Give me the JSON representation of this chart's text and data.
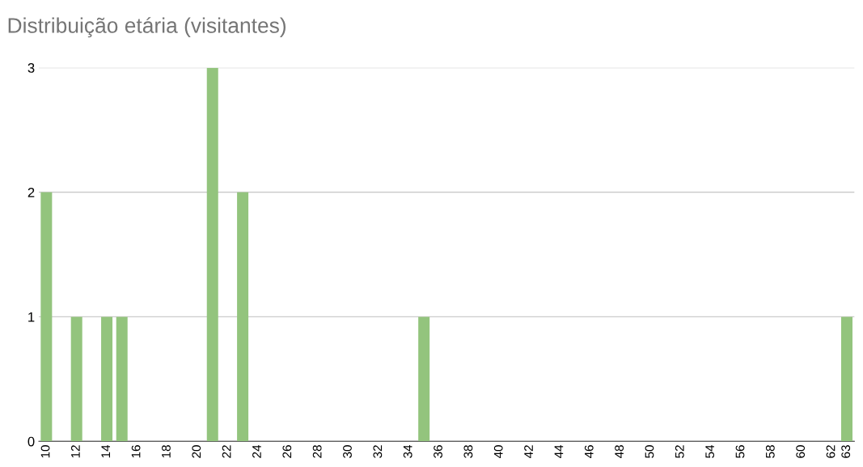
{
  "chart_data": {
    "type": "bar",
    "title": "Distribuição etária (visitantes)",
    "categories": [
      "10",
      null,
      "12",
      null,
      "14",
      null,
      "16",
      null,
      "18",
      null,
      "20",
      null,
      "22",
      null,
      "24",
      null,
      "26",
      null,
      "28",
      null,
      "30",
      null,
      "32",
      null,
      "34",
      null,
      "36",
      null,
      "38",
      null,
      "40",
      null,
      "42",
      null,
      "44",
      null,
      "46",
      null,
      "48",
      null,
      "50",
      null,
      "52",
      null,
      "54",
      null,
      "56",
      null,
      "58",
      null,
      "60",
      null,
      "62",
      "63"
    ],
    "values": [
      2,
      0,
      1,
      0,
      1,
      1,
      0,
      0,
      0,
      0,
      0,
      3,
      0,
      2,
      0,
      0,
      0,
      0,
      0,
      0,
      0,
      0,
      0,
      0,
      0,
      1,
      0,
      0,
      0,
      0,
      0,
      0,
      0,
      0,
      0,
      0,
      0,
      0,
      0,
      0,
      0,
      0,
      0,
      0,
      0,
      0,
      0,
      0,
      0,
      0,
      0,
      0,
      0,
      1
    ],
    "color": "#93c47d",
    "ylim": [
      0,
      3
    ],
    "yticks": [
      0,
      1,
      2,
      3
    ],
    "grid": "y"
  }
}
